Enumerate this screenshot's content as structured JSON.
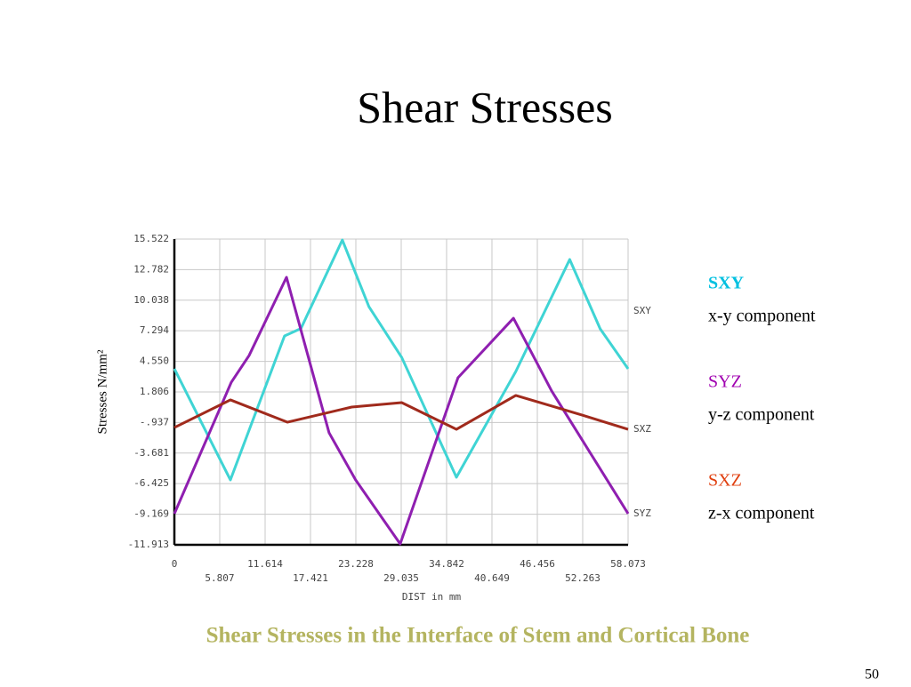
{
  "chart_data": {
    "type": "line",
    "title": "Shear Stresses",
    "caption": "Shear Stresses in the Interface of Stem and Cortical Bone",
    "x_label": "DIST  in mm",
    "y_label": "Stresses N/mm²",
    "xlim": [
      0,
      58.073
    ],
    "ylim": [
      -11.913,
      15.522
    ],
    "xticks": [
      0,
      5.807,
      11.614,
      17.421,
      23.228,
      29.035,
      34.842,
      40.649,
      46.456,
      52.263,
      58.073
    ],
    "yticks": [
      -11.913,
      -9.169,
      -6.425,
      -3.681,
      {
        "value": -0.937,
        "label": "-.937"
      },
      1.806,
      {
        "value": 4.55,
        "label": "4.550"
      },
      7.294,
      10.038,
      12.782,
      15.522
    ],
    "grid": true,
    "series": [
      {
        "name": "SXY",
        "description": "x-y component",
        "color": "#3fd4d4",
        "label_color": "#00c0e0",
        "x": [
          0,
          7.17,
          14.1,
          16.2,
          21.5,
          24.9,
          29.1,
          36.1,
          43.7,
          50.6,
          54.5,
          58.073
        ],
        "values": [
          3.88,
          -6.09,
          6.83,
          7.5,
          15.44,
          9.46,
          4.9,
          -5.85,
          3.64,
          13.69,
          7.47,
          3.88
        ]
      },
      {
        "name": "SYZ",
        "description": "y-z component",
        "color": "#8f1fb0",
        "label_color": "#a000b0",
        "x": [
          0,
          7.29,
          9.56,
          14.35,
          19.8,
          23.2,
          28.9,
          36.3,
          43.4,
          48.3,
          58.073
        ],
        "values": [
          -9.12,
          2.68,
          5.07,
          12.09,
          -1.86,
          -6.09,
          -11.83,
          3.08,
          8.42,
          1.88,
          -9.12
        ]
      },
      {
        "name": "SXZ",
        "description": "z-x component",
        "color": "#a02a1c",
        "label_color": "#e04010",
        "x": [
          0,
          7.17,
          14.46,
          22.7,
          29.1,
          36.1,
          43.7,
          52.2,
          58.073
        ],
        "values": [
          -1.39,
          1.09,
          -0.91,
          0.45,
          0.85,
          -1.55,
          1.49,
          -0.27,
          -1.55
        ]
      }
    ]
  },
  "page_number": "50"
}
